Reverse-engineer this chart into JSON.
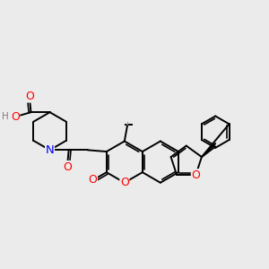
{
  "bg_color": "#ebebeb",
  "bond_color": "#000000",
  "bond_width": 1.4,
  "atom_colors": {
    "O": "#ff0000",
    "N": "#0000ff",
    "H": "#808080",
    "C": "#000000"
  },
  "font_size": 8.5
}
